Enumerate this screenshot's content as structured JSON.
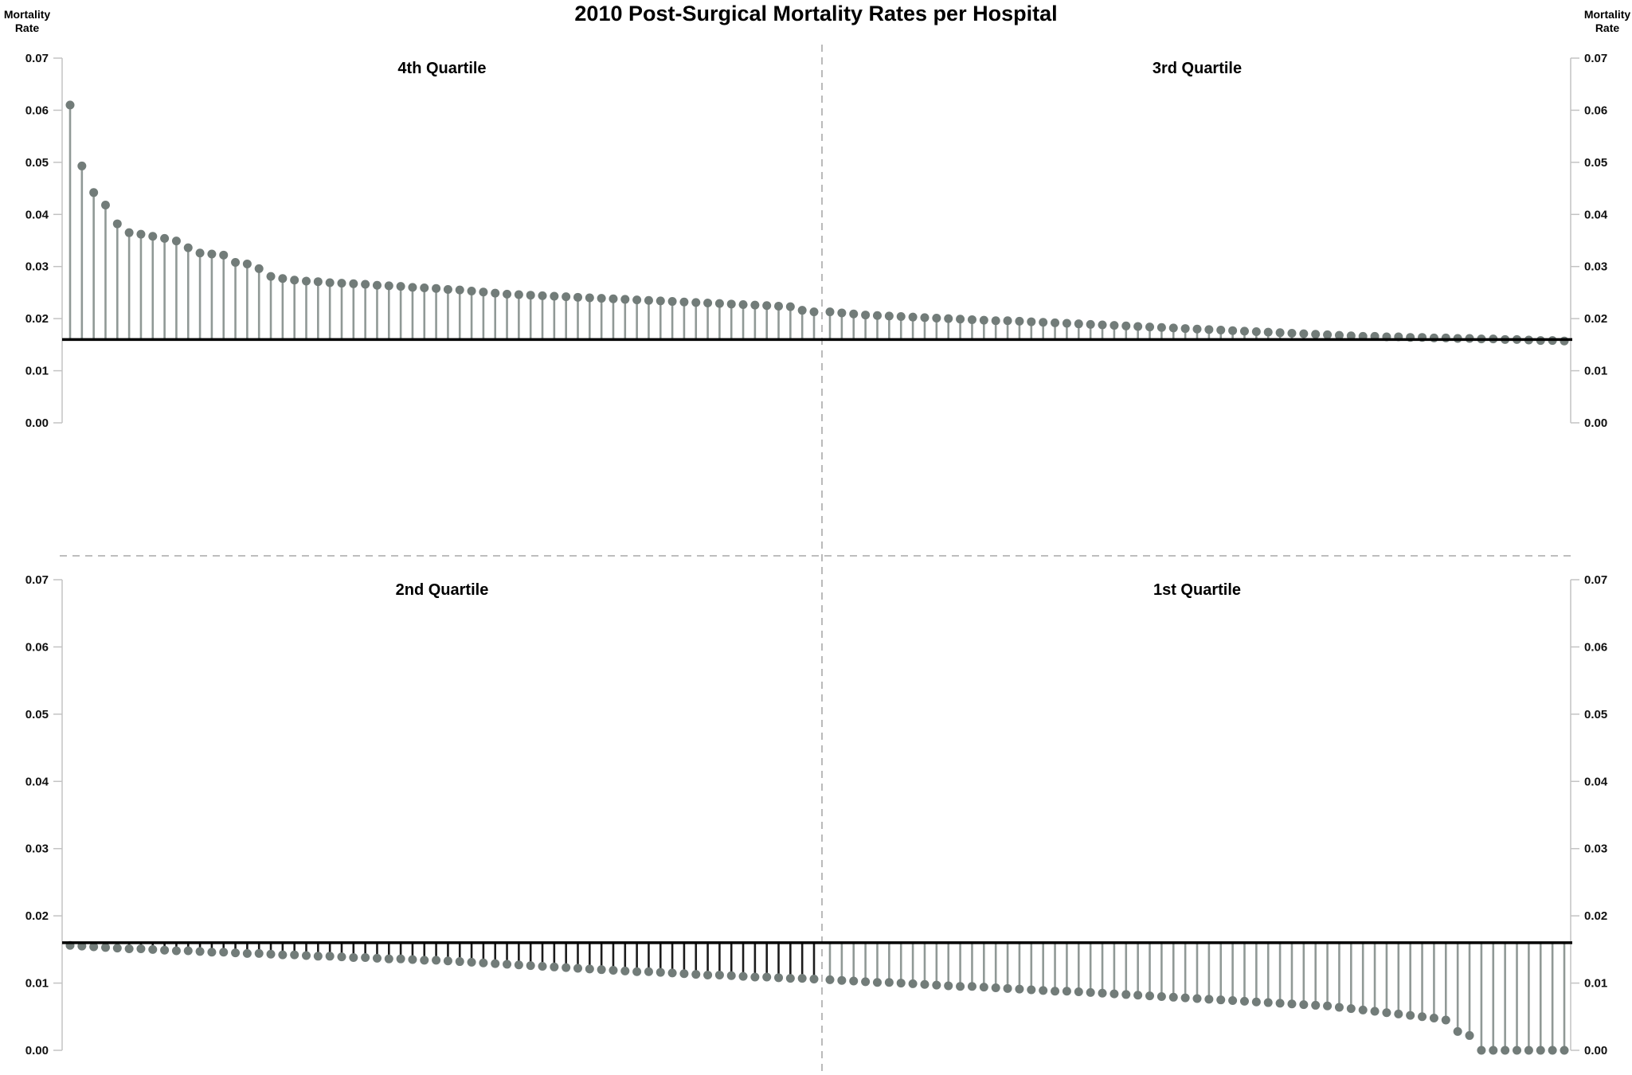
{
  "title": "2010 Post-Surgical Mortality Rates per Hospital",
  "y_axis": {
    "label_line1": "Mortality",
    "label_line2": "Rate",
    "ticks": [
      "0.07",
      "0.06",
      "0.05",
      "0.04",
      "0.03",
      "0.02",
      "0.01",
      "0.00"
    ]
  },
  "chart_data": {
    "type": "lollipop",
    "title": "2010 Post-Surgical Mortality Rates per Hospital",
    "ylabel": "Mortality Rate",
    "xlabel": "",
    "ylim": [
      0,
      0.07
    ],
    "ytick_step": 0.01,
    "grid": false,
    "legend": null,
    "baseline": 0.016,
    "layout": "2x2 quadrants split by dashed dividers, y-axis on far left and far right of each row",
    "colors": {
      "dot": "#727c79",
      "stem_gray": "#909996",
      "stem_dark": "#1b1b1b",
      "baseline": "#000000",
      "axis": "#c3c3c3",
      "divider": "#a9a9a9",
      "text": "#000000"
    },
    "panels": [
      {
        "label": "4th Quartile",
        "row": "top",
        "col": "left",
        "stem_color_key": "stem_gray",
        "values": [
          0.061,
          0.0493,
          0.0442,
          0.0418,
          0.0382,
          0.0365,
          0.0362,
          0.0358,
          0.0354,
          0.0349,
          0.0336,
          0.0326,
          0.0324,
          0.0322,
          0.0308,
          0.0305,
          0.0296,
          0.0281,
          0.0277,
          0.0274,
          0.0272,
          0.0271,
          0.0269,
          0.0268,
          0.0267,
          0.0266,
          0.0264,
          0.0263,
          0.0262,
          0.026,
          0.0259,
          0.0258,
          0.0256,
          0.0255,
          0.0253,
          0.0251,
          0.0249,
          0.0247,
          0.0246,
          0.0245,
          0.0244,
          0.0243,
          0.0242,
          0.0241,
          0.024,
          0.0239,
          0.0238,
          0.0237,
          0.0236,
          0.0235,
          0.0234,
          0.0233,
          0.0232,
          0.0231,
          0.023,
          0.0229,
          0.0228,
          0.0227,
          0.0226,
          0.0225,
          0.0224,
          0.0223,
          0.0216,
          0.0213
        ]
      },
      {
        "label": "3rd Quartile",
        "row": "top",
        "col": "right",
        "stem_color_key": "stem_gray",
        "values": [
          0.0213,
          0.0211,
          0.0209,
          0.0207,
          0.0206,
          0.0205,
          0.0204,
          0.0203,
          0.0202,
          0.0201,
          0.02,
          0.0199,
          0.0198,
          0.0197,
          0.0196,
          0.0196,
          0.0195,
          0.0194,
          0.0193,
          0.0192,
          0.0191,
          0.019,
          0.0189,
          0.0188,
          0.0187,
          0.0186,
          0.0185,
          0.0184,
          0.0183,
          0.0182,
          0.0181,
          0.018,
          0.0179,
          0.0178,
          0.0177,
          0.0176,
          0.0175,
          0.0174,
          0.0173,
          0.0172,
          0.0171,
          0.017,
          0.0169,
          0.0168,
          0.0167,
          0.0166,
          0.0166,
          0.0165,
          0.0165,
          0.0164,
          0.0164,
          0.0163,
          0.0163,
          0.0162,
          0.0162,
          0.0161,
          0.0161,
          0.016,
          0.016,
          0.0159,
          0.0158,
          0.0158,
          0.0157
        ]
      },
      {
        "label": "2nd Quartile",
        "row": "bottom",
        "col": "left",
        "stem_color_key": "stem_dark",
        "values": [
          0.0156,
          0.0155,
          0.0154,
          0.0153,
          0.0152,
          0.0151,
          0.0151,
          0.015,
          0.0149,
          0.0148,
          0.0148,
          0.0147,
          0.0146,
          0.0146,
          0.0145,
          0.0144,
          0.0144,
          0.0143,
          0.0142,
          0.0142,
          0.0141,
          0.014,
          0.014,
          0.0139,
          0.0138,
          0.0138,
          0.0137,
          0.0136,
          0.0136,
          0.0135,
          0.0134,
          0.0134,
          0.0133,
          0.0132,
          0.0131,
          0.013,
          0.0129,
          0.0128,
          0.0127,
          0.0126,
          0.0125,
          0.0124,
          0.0123,
          0.0122,
          0.0121,
          0.012,
          0.0119,
          0.0118,
          0.0117,
          0.0117,
          0.0116,
          0.0115,
          0.0114,
          0.0113,
          0.0112,
          0.0112,
          0.0111,
          0.011,
          0.0109,
          0.0109,
          0.0108,
          0.0107,
          0.0107,
          0.0106
        ]
      },
      {
        "label": "1st Quartile",
        "row": "bottom",
        "col": "right",
        "stem_color_key": "stem_gray",
        "values": [
          0.0105,
          0.0104,
          0.0103,
          0.0102,
          0.0101,
          0.0101,
          0.01,
          0.0099,
          0.0098,
          0.0097,
          0.0096,
          0.0095,
          0.0095,
          0.0094,
          0.0093,
          0.0092,
          0.0091,
          0.009,
          0.0089,
          0.0088,
          0.0088,
          0.0087,
          0.0086,
          0.0085,
          0.0084,
          0.0083,
          0.0082,
          0.0081,
          0.008,
          0.0079,
          0.0078,
          0.0077,
          0.0076,
          0.0075,
          0.0074,
          0.0073,
          0.0072,
          0.0071,
          0.007,
          0.0069,
          0.0068,
          0.0067,
          0.0066,
          0.0064,
          0.0062,
          0.006,
          0.0058,
          0.0056,
          0.0054,
          0.0052,
          0.005,
          0.0048,
          0.0045,
          0.0028,
          0.0022,
          0.0,
          0.0,
          0.0,
          0.0,
          0.0,
          0.0,
          0.0,
          0.0
        ]
      }
    ]
  }
}
